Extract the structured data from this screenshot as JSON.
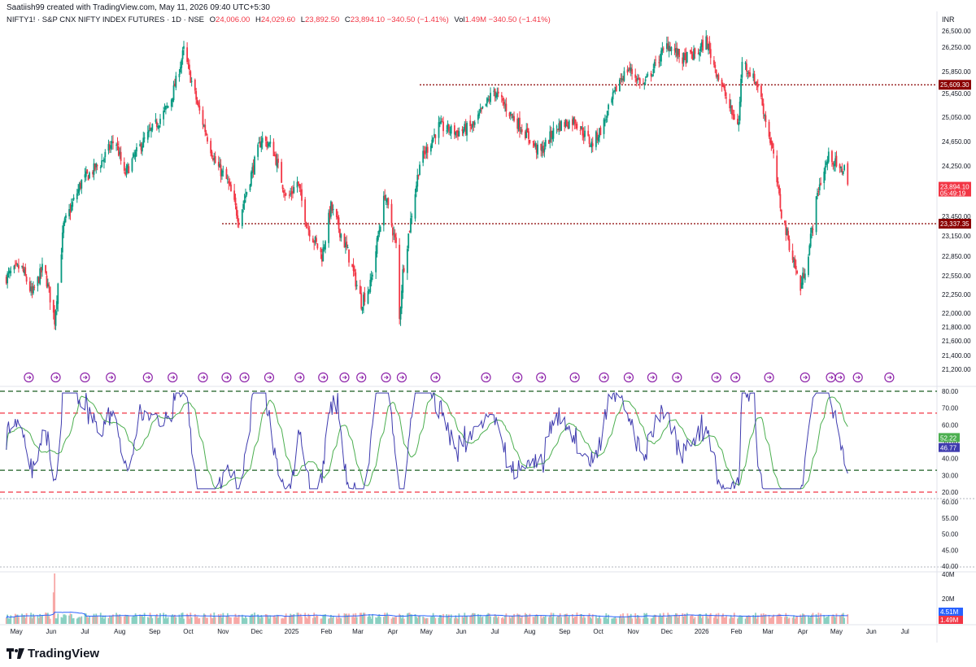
{
  "header": {
    "created_by": "Saatiish99 created with TradingView.com, May 11, 2026 09:40 UTC+5:30",
    "symbol": "NIFTY1! · S&P CNX NIFTY INDEX FUTURES · 1D · NSE",
    "open_label": "O",
    "open": "24,006.00",
    "high_label": "H",
    "high": "24,029.60",
    "low_label": "L",
    "low": "23,892.50",
    "close_label": "C",
    "close": "23,894.10",
    "change": "−340.50 (−1.41%)",
    "vol_label": "Vol",
    "vol": "1.49M",
    "vol_change": "−340.50 (−1.41%)"
  },
  "footer": {
    "brand": "TradingView"
  },
  "colors": {
    "up": "#089981",
    "down": "#f23645",
    "rsi_line": "#3f3caf",
    "rsi_ma": "#4caf50",
    "level_red": "#8b0000",
    "dash_green": "#1b5e20",
    "dash_red": "#f23645",
    "event_icon": "#8e24aa"
  },
  "chart_data": [
    {
      "type": "candlestick",
      "title": "NIFTY1! · S&P CNX NIFTY INDEX FUTURES · 1D · NSE",
      "currency_label": "INR",
      "y_ticks": [
        "26,500.00",
        "26,250.00",
        "25,850.00",
        "25,450.00",
        "25,050.00",
        "24,650.00",
        "24,250.00",
        "23,450.00",
        "23,150.00",
        "22,850.00",
        "22,550.00",
        "22,250.00",
        "22,000.00",
        "21,800.00",
        "21,600.00",
        "21,400.00",
        "21,200.00"
      ],
      "ylim": [
        21200,
        26500
      ],
      "x_ticks": [
        "May",
        "Jun",
        "Jul",
        "Aug",
        "Sep",
        "Oct",
        "Nov",
        "Dec",
        "2025",
        "Feb",
        "Mar",
        "Apr",
        "May",
        "Jun",
        "Jul",
        "Aug",
        "Sep",
        "Oct",
        "Nov",
        "Dec",
        "2026",
        "Feb",
        "Mar",
        "Apr",
        "May",
        "Jun",
        "Jul"
      ],
      "price_levels": [
        {
          "label": "25,609.30",
          "value": 25609.3
        },
        {
          "label": "23,337.35",
          "value": 23337.35
        }
      ],
      "last_price": {
        "label": "23,894.10",
        "countdown": "05:49:19",
        "value": 23894.1
      },
      "trajectory": [
        [
          "2024-04-20",
          22500
        ],
        [
          "2024-05-05",
          22700
        ],
        [
          "2024-05-15",
          22250
        ],
        [
          "2024-05-25",
          22700
        ],
        [
          "2024-06-04",
          21900
        ],
        [
          "2024-06-12",
          23300
        ],
        [
          "2024-06-28",
          24000
        ],
        [
          "2024-07-15",
          24300
        ],
        [
          "2024-07-28",
          24700
        ],
        [
          "2024-08-05",
          24100
        ],
        [
          "2024-08-20",
          24600
        ],
        [
          "2024-09-05",
          25000
        ],
        [
          "2024-09-15",
          25300
        ],
        [
          "2024-09-27",
          26200
        ],
        [
          "2024-10-10",
          25200
        ],
        [
          "2024-10-25",
          24300
        ],
        [
          "2024-11-05",
          24000
        ],
        [
          "2024-11-15",
          23400
        ],
        [
          "2024-12-05",
          24700
        ],
        [
          "2024-12-15",
          24550
        ],
        [
          "2024-12-28",
          23700
        ],
        [
          "2025-01-06",
          24000
        ],
        [
          "2025-01-15",
          23300
        ],
        [
          "2025-01-28",
          22850
        ],
        [
          "2025-02-05",
          23600
        ],
        [
          "2025-02-20",
          22900
        ],
        [
          "2025-03-04",
          22150
        ],
        [
          "2025-03-12",
          22400
        ],
        [
          "2025-03-25",
          23800
        ],
        [
          "2025-04-04",
          23000
        ],
        [
          "2025-04-07",
          21900
        ],
        [
          "2025-04-10",
          22600
        ],
        [
          "2025-04-25",
          24300
        ],
        [
          "2025-05-12",
          24900
        ],
        [
          "2025-05-28",
          24800
        ],
        [
          "2025-06-12",
          24900
        ],
        [
          "2025-06-30",
          25500
        ],
        [
          "2025-07-15",
          25100
        ],
        [
          "2025-08-01",
          24700
        ],
        [
          "2025-08-10",
          24450
        ],
        [
          "2025-08-25",
          24900
        ],
        [
          "2025-09-10",
          25000
        ],
        [
          "2025-09-25",
          24600
        ],
        [
          "2025-10-05",
          24900
        ],
        [
          "2025-10-20",
          25700
        ],
        [
          "2025-10-28",
          25900
        ],
        [
          "2025-11-10",
          25600
        ],
        [
          "2025-11-25",
          26100
        ],
        [
          "2025-12-02",
          26300
        ],
        [
          "2025-12-15",
          26050
        ],
        [
          "2025-12-28",
          26150
        ],
        [
          "2026-01-05",
          26350
        ],
        [
          "2026-01-15",
          25800
        ],
        [
          "2026-01-28",
          25100
        ],
        [
          "2026-02-03",
          24950
        ],
        [
          "2026-02-06",
          26050
        ],
        [
          "2026-02-20",
          25600
        ],
        [
          "2026-03-05",
          24500
        ],
        [
          "2026-03-13",
          23500
        ],
        [
          "2026-03-22",
          22900
        ],
        [
          "2026-03-30",
          22350
        ],
        [
          "2026-04-07",
          23000
        ],
        [
          "2026-04-15",
          23900
        ],
        [
          "2026-04-25",
          24450
        ],
        [
          "2026-05-04",
          24150
        ],
        [
          "2026-05-08",
          24250
        ],
        [
          "2026-05-11",
          23894
        ]
      ]
    },
    {
      "type": "line",
      "title": "RSI",
      "y_ticks": [
        "80.00",
        "70.00",
        "60.00",
        "50.00",
        "40.00",
        "30.00",
        "20.00"
      ],
      "ylim": [
        17,
        83
      ],
      "bands": [
        80,
        67,
        33,
        20
      ],
      "last_values": {
        "ma": "52.22",
        "rsi": "46.77"
      },
      "series": [
        {
          "values": []
        }
      ]
    },
    {
      "type": "line",
      "title": "",
      "y_ticks": [
        "60.00",
        "55.00",
        "50.00",
        "45.00",
        "40.00"
      ],
      "ylim": [
        39,
        61
      ],
      "series": []
    },
    {
      "type": "bar",
      "title": "Volume",
      "y_ticks": [
        "40M",
        "20M"
      ],
      "last_values": {
        "ma": "4.51M",
        "vol": "1.49M"
      }
    }
  ],
  "events": [
    "2024-05-12",
    "2024-06-05",
    "2024-07-01",
    "2024-07-24",
    "2024-08-26",
    "2024-09-17",
    "2024-10-14",
    "2024-11-04",
    "2024-11-20",
    "2024-12-12",
    "2025-01-08",
    "2025-01-29",
    "2025-02-17",
    "2025-03-04",
    "2025-03-26",
    "2025-04-09",
    "2025-05-09",
    "2025-06-23",
    "2025-07-21",
    "2025-08-11",
    "2025-09-10",
    "2025-10-06",
    "2025-10-28",
    "2025-11-18",
    "2025-12-10",
    "2026-01-14",
    "2026-01-31",
    "2026-03-02",
    "2026-04-03",
    "2026-04-26",
    "2026-05-04",
    "2026-05-20",
    "2026-06-17"
  ]
}
